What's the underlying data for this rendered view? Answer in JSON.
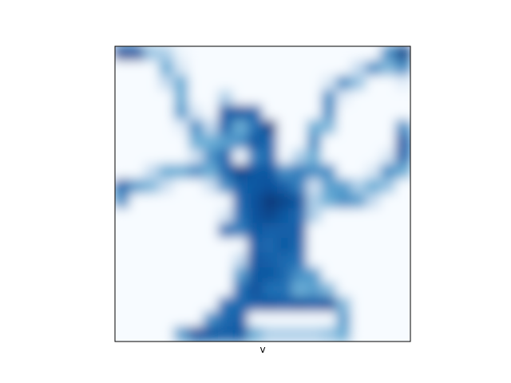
{
  "chart_data": {
    "type": "heatmap",
    "title": "",
    "xlabel": "v",
    "ylabel": "",
    "colormap": "Blues",
    "colors": {
      "low": "#f7fbff",
      "high": "#08306b",
      "axes_border": "#000000"
    },
    "ticks": "none",
    "grid": false,
    "grid_size": [
      20,
      20
    ],
    "vmin": 0,
    "vmax": 1,
    "values": [
      [
        0.85,
        0.8,
        0.35,
        0.3,
        0.05,
        0.0,
        0.0,
        0.0,
        0.0,
        0.0,
        0.0,
        0.0,
        0.0,
        0.0,
        0.0,
        0.0,
        0.0,
        0.0,
        0.55,
        0.9
      ],
      [
        0.0,
        0.0,
        0.0,
        0.45,
        0.15,
        0.0,
        0.0,
        0.0,
        0.0,
        0.0,
        0.0,
        0.0,
        0.0,
        0.0,
        0.0,
        0.0,
        0.25,
        0.55,
        0.4,
        0.55
      ],
      [
        0.0,
        0.0,
        0.0,
        0.25,
        0.45,
        0.0,
        0.0,
        0.0,
        0.0,
        0.0,
        0.0,
        0.0,
        0.0,
        0.0,
        0.15,
        0.55,
        0.35,
        0.0,
        0.0,
        0.1
      ],
      [
        0.0,
        0.0,
        0.0,
        0.0,
        0.45,
        0.0,
        0.0,
        0.3,
        0.0,
        0.0,
        0.0,
        0.0,
        0.0,
        0.0,
        0.55,
        0.1,
        0.0,
        0.0,
        0.0,
        0.0
      ],
      [
        0.0,
        0.0,
        0.0,
        0.0,
        0.5,
        0.15,
        0.0,
        0.75,
        0.8,
        0.7,
        0.0,
        0.0,
        0.0,
        0.0,
        0.55,
        0.0,
        0.0,
        0.0,
        0.0,
        0.0
      ],
      [
        0.0,
        0.0,
        0.0,
        0.0,
        0.1,
        0.55,
        0.25,
        0.7,
        0.45,
        0.65,
        0.9,
        0.0,
        0.0,
        0.45,
        0.4,
        0.0,
        0.0,
        0.0,
        0.0,
        0.55
      ],
      [
        0.0,
        0.0,
        0.0,
        0.0,
        0.0,
        0.45,
        0.45,
        0.5,
        0.55,
        0.8,
        0.7,
        0.0,
        0.0,
        0.55,
        0.0,
        0.0,
        0.0,
        0.0,
        0.0,
        0.75
      ],
      [
        0.0,
        0.0,
        0.0,
        0.0,
        0.0,
        0.2,
        0.55,
        0.7,
        0.0,
        0.6,
        0.7,
        0.0,
        0.3,
        0.45,
        0.0,
        0.0,
        0.0,
        0.0,
        0.15,
        0.7
      ],
      [
        0.0,
        0.0,
        0.25,
        0.45,
        0.45,
        0.55,
        0.45,
        0.7,
        0.9,
        0.8,
        0.8,
        0.55,
        0.6,
        0.55,
        0.55,
        0.0,
        0.0,
        0.15,
        0.55,
        0.45
      ],
      [
        0.7,
        0.5,
        0.4,
        0.2,
        0.0,
        0.0,
        0.2,
        0.55,
        0.75,
        0.8,
        0.85,
        0.75,
        0.6,
        0.2,
        0.5,
        0.5,
        0.3,
        0.45,
        0.35,
        0.0
      ],
      [
        0.55,
        0.0,
        0.0,
        0.0,
        0.0,
        0.0,
        0.0,
        0.0,
        0.7,
        0.85,
        0.95,
        0.9,
        0.8,
        0.3,
        0.45,
        0.55,
        0.5,
        0.25,
        0.0,
        0.0
      ],
      [
        0.0,
        0.0,
        0.0,
        0.0,
        0.0,
        0.0,
        0.0,
        0.15,
        0.65,
        0.85,
        0.9,
        0.8,
        0.7,
        0.3,
        0.0,
        0.0,
        0.0,
        0.0,
        0.0,
        0.0
      ],
      [
        0.0,
        0.0,
        0.0,
        0.0,
        0.0,
        0.0,
        0.0,
        0.65,
        0.6,
        0.8,
        0.75,
        0.75,
        0.75,
        0.0,
        0.0,
        0.0,
        0.0,
        0.0,
        0.0,
        0.0
      ],
      [
        0.0,
        0.0,
        0.0,
        0.0,
        0.0,
        0.0,
        0.0,
        0.0,
        0.0,
        0.75,
        0.7,
        0.8,
        0.7,
        0.0,
        0.0,
        0.0,
        0.0,
        0.0,
        0.0,
        0.0
      ],
      [
        0.0,
        0.0,
        0.0,
        0.0,
        0.0,
        0.0,
        0.0,
        0.0,
        0.25,
        0.8,
        0.75,
        0.7,
        0.65,
        0.0,
        0.0,
        0.0,
        0.0,
        0.0,
        0.0,
        0.0
      ],
      [
        0.0,
        0.0,
        0.0,
        0.0,
        0.0,
        0.0,
        0.0,
        0.0,
        0.5,
        0.8,
        0.8,
        0.7,
        0.55,
        0.5,
        0.0,
        0.0,
        0.0,
        0.0,
        0.0,
        0.0
      ],
      [
        0.0,
        0.0,
        0.0,
        0.0,
        0.0,
        0.0,
        0.0,
        0.0,
        0.65,
        0.85,
        0.65,
        0.65,
        0.45,
        0.5,
        0.4,
        0.0,
        0.0,
        0.0,
        0.0,
        0.0
      ],
      [
        0.0,
        0.0,
        0.0,
        0.0,
        0.0,
        0.0,
        0.0,
        0.65,
        0.7,
        0.75,
        0.8,
        0.75,
        0.8,
        0.75,
        0.8,
        0.4,
        0.0,
        0.0,
        0.0,
        0.0
      ],
      [
        0.0,
        0.0,
        0.0,
        0.0,
        0.0,
        0.0,
        0.55,
        0.7,
        0.75,
        0.0,
        0.0,
        0.0,
        0.0,
        0.0,
        0.0,
        0.5,
        0.0,
        0.0,
        0.0,
        0.0
      ],
      [
        0.0,
        0.0,
        0.0,
        0.0,
        0.5,
        0.8,
        0.8,
        0.75,
        0.8,
        0.45,
        0.3,
        0.3,
        0.3,
        0.3,
        0.35,
        0.45,
        0.0,
        0.0,
        0.0,
        0.0
      ]
    ]
  }
}
